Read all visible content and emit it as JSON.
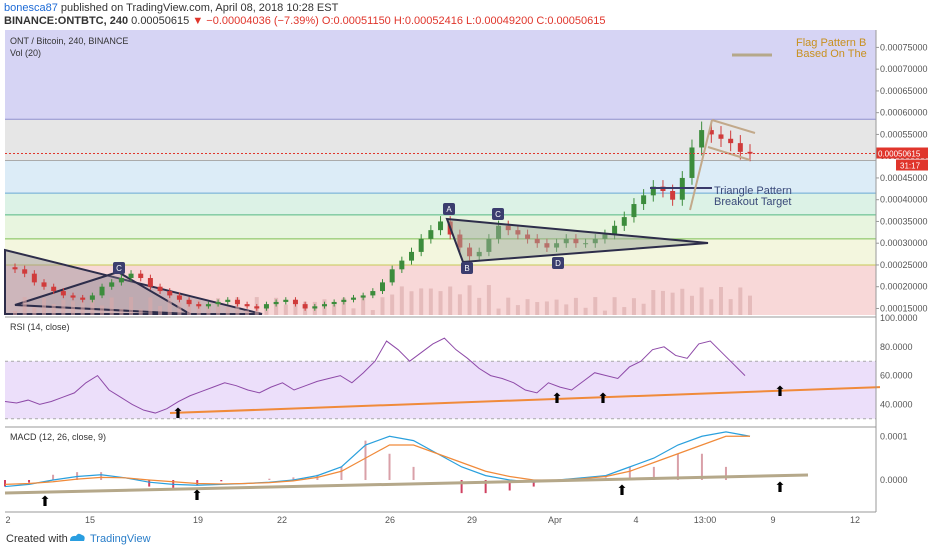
{
  "header": {
    "author": "bonesca87",
    "published": "published on TradingView.com, April 08, 2018 10:28 EST",
    "symbol_line_prefix": "BINANCE:ONTBTC, 240",
    "last": "0.00050615",
    "change": "−0.00004036 (−7.39%)",
    "ohlc": "O:0.00051150 H:0.00052416 L:0.00049200 C:0.00050615"
  },
  "legend": {
    "main": "ONT / Bitcoin, 240, BINANCE",
    "vol": "Vol (20)",
    "rsi": "RSI (14, close)",
    "macd": "MACD (12, 26, close, 9)"
  },
  "annotations": {
    "flag": "Flag Pattern B\nBased On The",
    "triangle": "Triangle Pattern\nBreakout Target",
    "points": [
      "A",
      "B",
      "C",
      "D",
      "C"
    ]
  },
  "price_badge": {
    "price": "0.00050615",
    "time": "31:17"
  },
  "footer": {
    "created": "Created with",
    "brand": "TradingView"
  },
  "colors": {
    "up": "#3c8c3c",
    "down": "#d03b3b",
    "accent": "#2a7ec9"
  },
  "chart_data": [
    {
      "type": "candlestick",
      "title": "ONT / Bitcoin, 240, BINANCE",
      "y_ticks": [
        "0.00075000",
        "0.00070000",
        "0.00065000",
        "0.00060000",
        "0.00055000",
        "0.00050000",
        "0.00045000",
        "0.00040000",
        "0.00035000",
        "0.00030000",
        "0.00025000",
        "0.00020000",
        "0.00015000"
      ],
      "ylim": [
        0.000135,
        0.00079
      ],
      "x_ticks": [
        "2",
        "15",
        "19",
        "22",
        "26",
        "29",
        "Apr",
        "4",
        "13:00",
        "9",
        "12"
      ],
      "levels": [
        0.000585,
        0.00049,
        0.000415,
        0.000365,
        0.00031,
        0.00025
      ],
      "close_series": [
        0.00024,
        0.00023,
        0.00021,
        0.0002,
        0.00019,
        0.00018,
        0.000175,
        0.00017,
        0.00018,
        0.0002,
        0.00021,
        0.00022,
        0.00023,
        0.00022,
        0.0002,
        0.00019,
        0.00018,
        0.00017,
        0.00016,
        0.000155,
        0.00016,
        0.000165,
        0.00017,
        0.00016,
        0.000155,
        0.00015,
        0.00016,
        0.000165,
        0.00017,
        0.00016,
        0.00015,
        0.000155,
        0.00016,
        0.000165,
        0.00017,
        0.000175,
        0.00018,
        0.00019,
        0.00021,
        0.00024,
        0.00026,
        0.00028,
        0.00031,
        0.00033,
        0.00035,
        0.00032,
        0.00029,
        0.00027,
        0.00028,
        0.00031,
        0.00034,
        0.00033,
        0.00032,
        0.00031,
        0.0003,
        0.00029,
        0.0003,
        0.00031,
        0.0003,
        0.0003,
        0.00031,
        0.00032,
        0.00034,
        0.00036,
        0.00039,
        0.00041,
        0.00043,
        0.00042,
        0.0004,
        0.00045,
        0.00052,
        0.00056,
        0.00055,
        0.00054,
        0.00053,
        0.00051,
        0.000506
      ]
    },
    {
      "type": "line",
      "title": "RSI (14, close)",
      "y_ticks": [
        "100.0000",
        "80.0000",
        "60.0000",
        "40.0000"
      ],
      "ylim": [
        25,
        100
      ],
      "values": [
        42,
        41,
        43,
        40,
        42,
        45,
        48,
        55,
        60,
        50,
        45,
        40,
        36,
        34,
        37,
        42,
        46,
        49,
        52,
        55,
        53,
        50,
        48,
        52,
        55,
        50,
        53,
        56,
        58,
        60,
        55,
        62,
        70,
        84,
        78,
        70,
        76,
        82,
        86,
        78,
        72,
        65,
        60,
        58,
        55,
        50,
        48,
        55,
        52,
        50,
        56,
        62,
        60,
        58,
        66,
        70,
        78,
        80,
        74,
        72,
        82,
        84,
        76,
        68,
        60
      ]
    },
    {
      "type": "line",
      "title": "MACD (12, 26, close, 9)",
      "y_ticks": [
        "0.0001",
        "0.0000"
      ],
      "macd": [
        -1.5e-05,
        -1e-05,
        0.0,
        8e-06,
        1.2e-05,
        5e-06,
        -5e-06,
        -1e-05,
        -1.2e-05,
        -1e-05,
        -8e-06,
        -5e-06,
        0.0,
        1e-05,
        3e-05,
        8e-05,
        0.0001,
        9e-05,
        6e-05,
        3e-05,
        1e-05,
        0.0,
        -5e-06,
        0.0,
        5e-06,
        1e-05,
        3e-05,
        5e-05,
        8e-05,
        0.0001,
        0.00011,
        0.0001
      ],
      "signal": [
        -1e-05,
        -8e-06,
        -4e-06,
        2e-06,
        6e-06,
        5e-06,
        0.0,
        -4e-06,
        -8e-06,
        -9e-06,
        -8e-06,
        -6e-06,
        -2e-06,
        6e-06,
        2e-05,
        5e-05,
        8e-05,
        8e-05,
        6e-05,
        4e-05,
        2e-05,
        8e-06,
        0.0,
        0.0,
        3e-06,
        8e-06,
        2e-05,
        4e-05,
        6e-05,
        8e-05,
        0.0001,
        0.0001
      ]
    }
  ]
}
